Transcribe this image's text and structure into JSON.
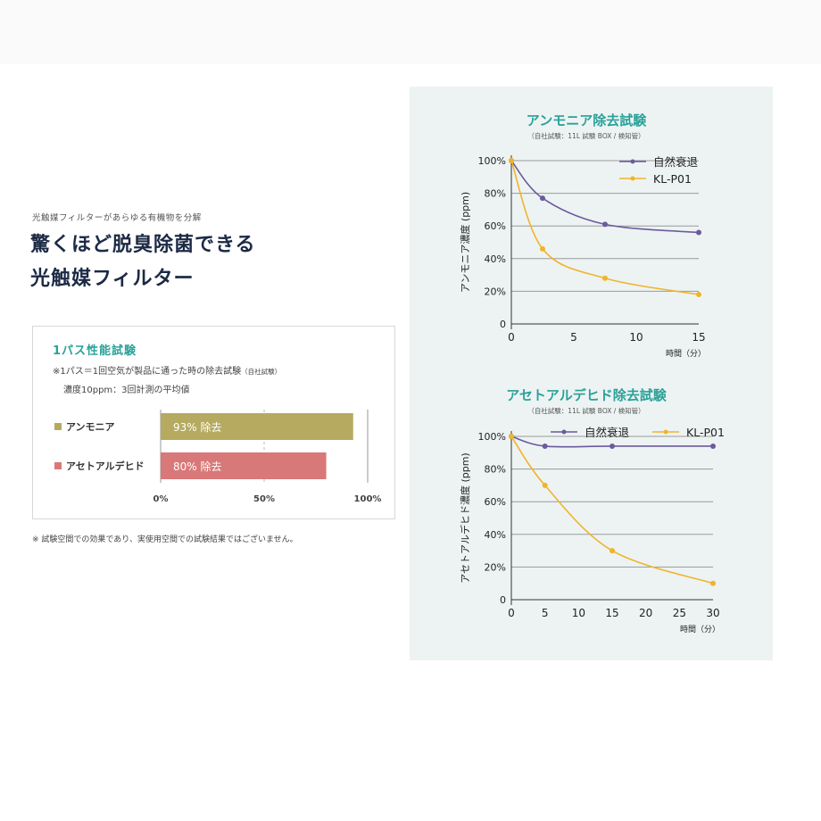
{
  "header": {
    "subhead": "光触媒フィルターがあらゆる有機物を分解",
    "headline_lines": [
      "驚くほど脱臭除菌できる",
      "光触媒フィルター"
    ]
  },
  "performance": {
    "title": "1パス性能試験",
    "note_main": "※1パス＝1回空気が製品に通った時の除去試験",
    "note_small": "（自社試験）",
    "note2": "濃度10ppm：3回計測の平均値",
    "bar_suffix": "除去",
    "chart_data": {
      "type": "bar",
      "orientation": "horizontal",
      "categories": [
        "アンモニア",
        "アセトアルデヒド"
      ],
      "values": [
        93,
        80
      ],
      "value_labels": [
        "93%",
        "80%"
      ],
      "colors": [
        "#b5aa5f",
        "#d97878"
      ],
      "xlim": [
        0,
        100
      ],
      "ticks": [
        "0%",
        "50%",
        "100%"
      ]
    }
  },
  "footnote": "※ 試験空間での効果であり、実使用空間での試験結果ではございません。",
  "charts": [
    {
      "type": "line",
      "title": "アンモニア除去試験",
      "subtitle": "（自社試験：11L 試験 BOX / 検知管）",
      "ylabel": "アンモニア濃度 (ppm)",
      "xlabel": "時間（分）",
      "xlim": [
        0,
        15
      ],
      "ylim": [
        0,
        100
      ],
      "xticks": [
        0,
        5,
        10,
        15
      ],
      "yticks": [
        0,
        20,
        40,
        60,
        80,
        100
      ],
      "ytick_labels": [
        "0",
        "20%",
        "40%",
        "60%",
        "80%",
        "100%"
      ],
      "legend_position": "top-right",
      "series": [
        {
          "name": "自然衰退",
          "color": "#6b5a9e",
          "x": [
            0,
            2.5,
            7.5,
            15
          ],
          "y": [
            100,
            77,
            61,
            56
          ]
        },
        {
          "name": "KL-P01",
          "color": "#f0b42a",
          "x": [
            0,
            2.5,
            7.5,
            15
          ],
          "y": [
            100,
            46,
            28,
            18
          ]
        }
      ]
    },
    {
      "type": "line",
      "title": "アセトアルデヒド除去試験",
      "subtitle": "（自社試験：11L 試験 BOX / 検知管）",
      "ylabel": "アセトアルデヒド濃度 (ppm)",
      "xlabel": "時間（分）",
      "xlim": [
        0,
        30
      ],
      "ylim": [
        0,
        100
      ],
      "xticks": [
        0,
        5,
        10,
        15,
        20,
        25,
        30
      ],
      "yticks": [
        0,
        20,
        40,
        60,
        80,
        100
      ],
      "ytick_labels": [
        "0",
        "20%",
        "40%",
        "60%",
        "80%",
        "100%"
      ],
      "legend_position": "top",
      "series": [
        {
          "name": "自然衰退",
          "color": "#6b5a9e",
          "x": [
            0,
            5,
            15,
            30
          ],
          "y": [
            100,
            94,
            94,
            94
          ]
        },
        {
          "name": "KL-P01",
          "color": "#f0b42a",
          "x": [
            0,
            5,
            15,
            30
          ],
          "y": [
            100,
            70,
            30,
            10
          ]
        }
      ]
    }
  ]
}
